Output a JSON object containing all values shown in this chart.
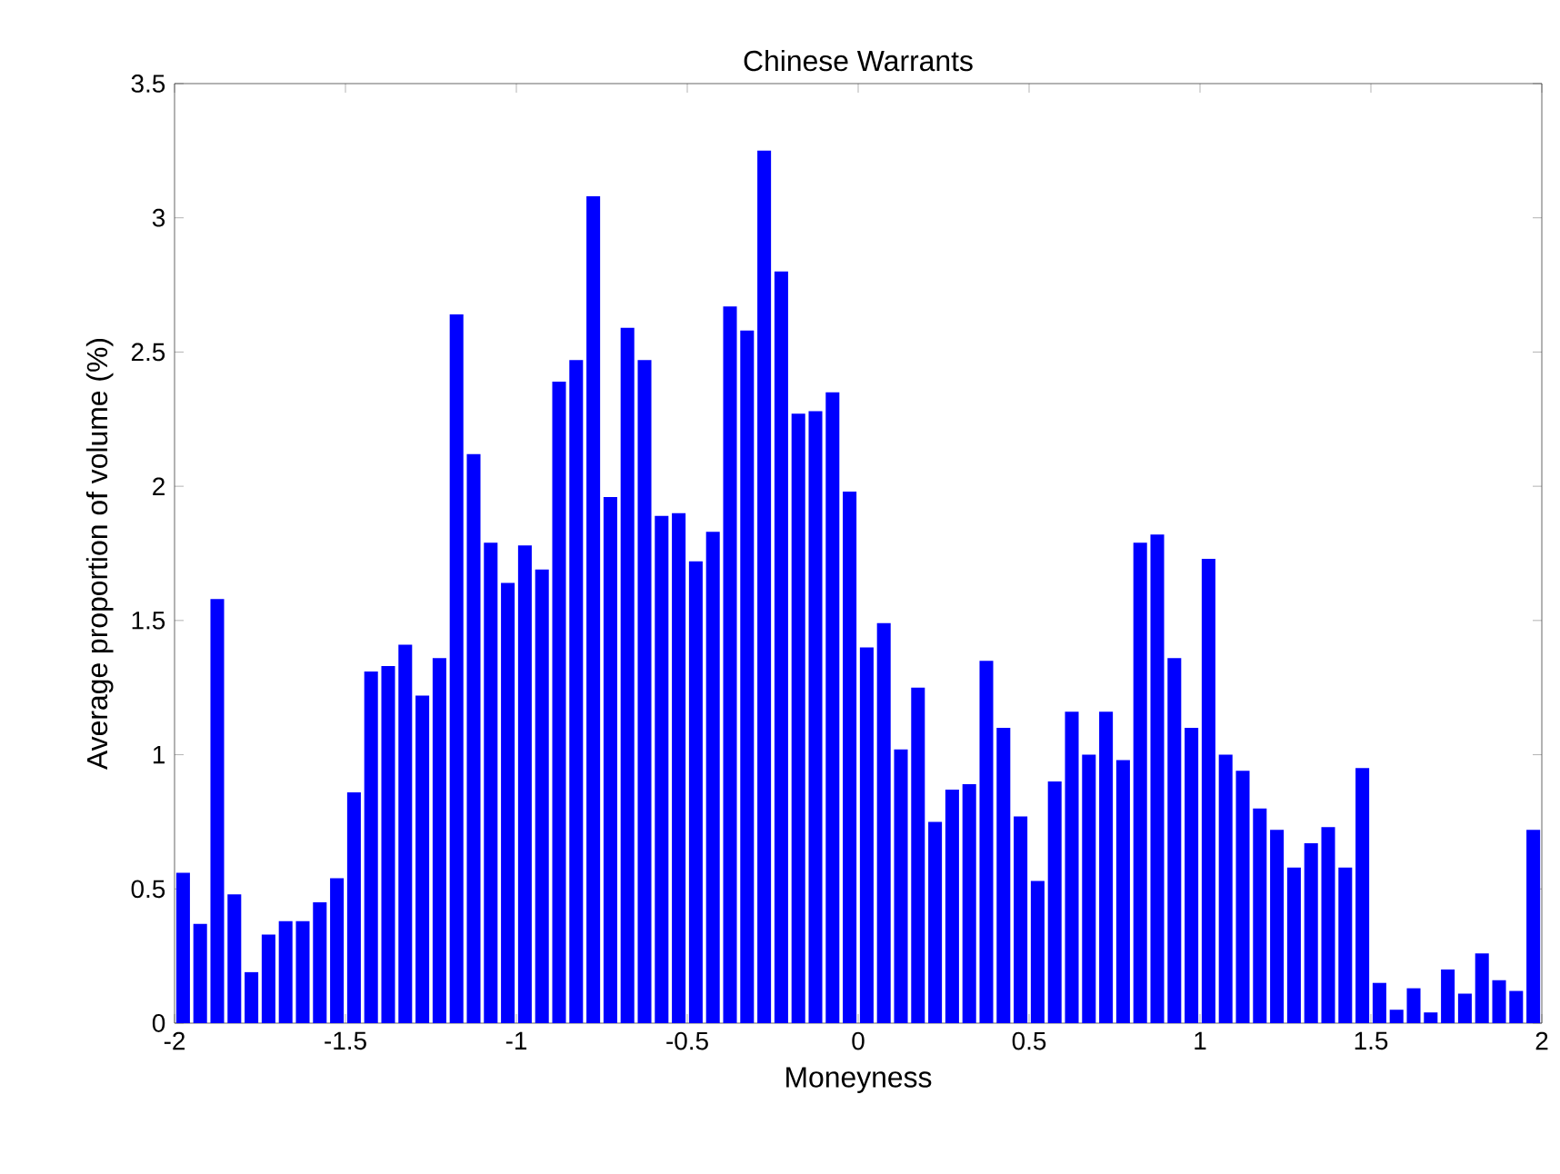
{
  "chart_data": {
    "type": "histogram",
    "title": "Chinese Warrants",
    "xlabel": "Moneyness",
    "ylabel": "Average proportion of volume  (%)",
    "bins": [
      -2.0,
      -1.95,
      -1.9,
      -1.85,
      -1.8,
      -1.75,
      -1.7,
      -1.65,
      -1.6,
      -1.55,
      -1.5,
      -1.45,
      -1.4,
      -1.35,
      -1.3,
      -1.25,
      -1.2,
      -1.15,
      -1.1,
      -1.05,
      -1.0,
      -0.95,
      -0.9,
      -0.85,
      -0.8,
      -0.75,
      -0.7,
      -0.65,
      -0.6,
      -0.55,
      -0.5,
      -0.45,
      -0.4,
      -0.35,
      -0.3,
      -0.25,
      -0.2,
      -0.15,
      -0.1,
      -0.05,
      0.0,
      0.05,
      0.1,
      0.15,
      0.2,
      0.25,
      0.3,
      0.35,
      0.4,
      0.45,
      0.5,
      0.55,
      0.6,
      0.65,
      0.7,
      0.75,
      0.8,
      0.85,
      0.9,
      0.95,
      1.0,
      1.05,
      1.1,
      1.15,
      1.2,
      1.25,
      1.3,
      1.35,
      1.4,
      1.45,
      1.5,
      1.55,
      1.6,
      1.65,
      1.7,
      1.75,
      1.8,
      1.85,
      1.9,
      1.95,
      2.0
    ],
    "values": [
      0.56,
      0.37,
      1.58,
      0.48,
      0.19,
      0.33,
      0.38,
      0.38,
      0.45,
      0.54,
      0.86,
      1.31,
      1.33,
      1.41,
      1.22,
      1.36,
      2.64,
      2.12,
      1.79,
      1.64,
      1.78,
      1.69,
      2.39,
      2.47,
      3.08,
      1.96,
      2.59,
      2.47,
      1.89,
      1.9,
      1.72,
      1.83,
      2.67,
      2.58,
      3.25,
      2.8,
      2.27,
      2.28,
      2.35,
      1.98,
      1.4,
      1.49,
      1.02,
      1.25,
      0.75,
      0.87,
      0.89,
      1.35,
      1.1,
      0.77,
      0.53,
      0.9,
      1.16,
      1.0,
      1.16,
      0.98,
      1.79,
      1.82,
      1.36,
      1.1,
      1.73,
      1.0,
      0.94,
      0.8,
      0.72,
      0.58,
      0.67,
      0.73,
      0.58,
      0.95,
      0.15,
      0.05,
      0.13,
      0.04,
      0.2,
      0.11,
      0.26,
      0.16,
      0.12,
      0.72
    ],
    "color": "#0000ff",
    "xlim": [
      -2,
      2
    ],
    "xticks": [
      -2,
      -1.5,
      -1,
      -0.5,
      0,
      0.5,
      1,
      1.5,
      2
    ],
    "ylim": [
      0,
      3.5
    ],
    "yticks": [
      0,
      0.5,
      1,
      1.5,
      2,
      2.5,
      3,
      3.5
    ],
    "grid": false
  }
}
